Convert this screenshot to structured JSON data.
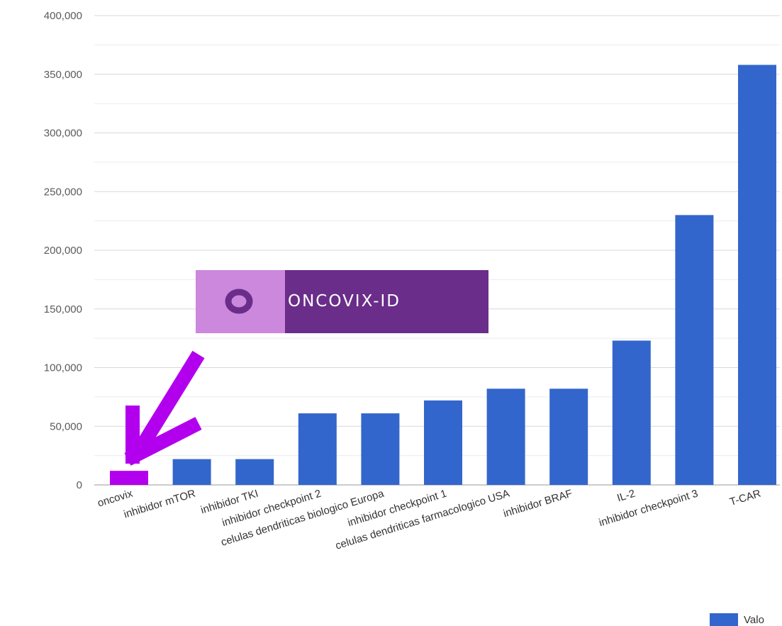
{
  "chart_data": {
    "type": "bar",
    "categories": [
      "oncovix",
      "inhibidor mTOR",
      "inhibidor TKI",
      "inhibidor checkpoint 2",
      "celulas dendriticas biologico Europa",
      "inhibidor checkpoint 1",
      "celulas dendriticas farmacologico USA",
      "inhibidor BRAF",
      "IL-2",
      "inhibidor checkpoint 3",
      "T-CAR"
    ],
    "values": [
      12000,
      22000,
      22000,
      61000,
      61000,
      72000,
      82000,
      82000,
      123000,
      230000,
      358000
    ],
    "ylim": [
      0,
      400000
    ],
    "yticks": [
      "0",
      "50,000",
      "100,000",
      "150,000",
      "200,000",
      "250,000",
      "300,000",
      "350,000",
      "400,000"
    ],
    "grid": true,
    "legend": {
      "label": "Valo",
      "position": "bottom-right"
    },
    "colors": {
      "bar": "#3366cc",
      "highlight": "#b200ee",
      "arrow": "#b200ee"
    },
    "highlight_category": "oncovix"
  },
  "logo": {
    "text": "ONCOVIX-ID",
    "colors": {
      "light": "#cc88dd",
      "dark": "#6a2d8a",
      "ring": "#6a2d8a"
    }
  }
}
